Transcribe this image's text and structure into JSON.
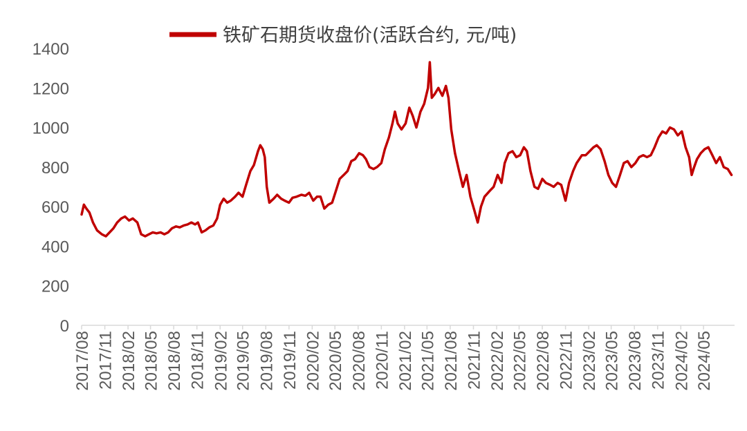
{
  "chart_data": {
    "type": "line",
    "title": "",
    "xlabel": "",
    "ylabel": "",
    "ylim": [
      0,
      1400
    ],
    "yticks": [
      0,
      200,
      400,
      600,
      800,
      1000,
      1200,
      1400
    ],
    "xlim": [
      "2017-08",
      "2024-09"
    ],
    "xticks": [
      "2017/08",
      "2017/11",
      "2018/02",
      "2018/05",
      "2018/08",
      "2018/11",
      "2019/02",
      "2019/05",
      "2019/08",
      "2019/11",
      "2020/02",
      "2020/05",
      "2020/08",
      "2020/11",
      "2021/02",
      "2021/05",
      "2021/08",
      "2021/11",
      "2022/02",
      "2022/05",
      "2022/08",
      "2022/11",
      "2023/02",
      "2023/05",
      "2023/08",
      "2023/11",
      "2024/02",
      "2024/05"
    ],
    "grid": false,
    "legend_position": "top",
    "series": [
      {
        "name": "铁矿石期货收盘价(活跃合约,  元/吨)",
        "color": "#C00000",
        "points": [
          [
            "2017-08-01",
            560
          ],
          [
            "2017-08-10",
            610
          ],
          [
            "2017-08-20",
            590
          ],
          [
            "2017-09-01",
            570
          ],
          [
            "2017-09-15",
            520
          ],
          [
            "2017-10-01",
            480
          ],
          [
            "2017-10-20",
            460
          ],
          [
            "2017-11-05",
            450
          ],
          [
            "2017-11-20",
            470
          ],
          [
            "2017-12-05",
            490
          ],
          [
            "2017-12-20",
            520
          ],
          [
            "2018-01-05",
            540
          ],
          [
            "2018-01-20",
            550
          ],
          [
            "2018-02-05",
            530
          ],
          [
            "2018-02-20",
            540
          ],
          [
            "2018-03-10",
            520
          ],
          [
            "2018-03-25",
            460
          ],
          [
            "2018-04-10",
            450
          ],
          [
            "2018-04-25",
            460
          ],
          [
            "2018-05-10",
            470
          ],
          [
            "2018-05-25",
            465
          ],
          [
            "2018-06-10",
            470
          ],
          [
            "2018-06-25",
            460
          ],
          [
            "2018-07-10",
            470
          ],
          [
            "2018-07-25",
            490
          ],
          [
            "2018-08-10",
            500
          ],
          [
            "2018-08-25",
            495
          ],
          [
            "2018-09-10",
            505
          ],
          [
            "2018-09-25",
            510
          ],
          [
            "2018-10-10",
            520
          ],
          [
            "2018-10-25",
            510
          ],
          [
            "2018-11-05",
            520
          ],
          [
            "2018-11-20",
            470
          ],
          [
            "2018-12-05",
            480
          ],
          [
            "2018-12-20",
            495
          ],
          [
            "2019-01-05",
            505
          ],
          [
            "2019-01-20",
            540
          ],
          [
            "2019-02-01",
            610
          ],
          [
            "2019-02-15",
            640
          ],
          [
            "2019-03-01",
            620
          ],
          [
            "2019-03-15",
            630
          ],
          [
            "2019-04-01",
            650
          ],
          [
            "2019-04-15",
            670
          ],
          [
            "2019-05-01",
            650
          ],
          [
            "2019-05-15",
            710
          ],
          [
            "2019-06-01",
            780
          ],
          [
            "2019-06-15",
            810
          ],
          [
            "2019-07-01",
            880
          ],
          [
            "2019-07-10",
            910
          ],
          [
            "2019-07-20",
            890
          ],
          [
            "2019-07-28",
            850
          ],
          [
            "2019-08-05",
            700
          ],
          [
            "2019-08-15",
            620
          ],
          [
            "2019-09-01",
            640
          ],
          [
            "2019-09-15",
            660
          ],
          [
            "2019-10-01",
            640
          ],
          [
            "2019-10-15",
            630
          ],
          [
            "2019-11-01",
            620
          ],
          [
            "2019-11-15",
            645
          ],
          [
            "2019-12-01",
            650
          ],
          [
            "2019-12-20",
            660
          ],
          [
            "2020-01-05",
            655
          ],
          [
            "2020-01-20",
            670
          ],
          [
            "2020-02-05",
            630
          ],
          [
            "2020-02-20",
            650
          ],
          [
            "2020-03-05",
            650
          ],
          [
            "2020-03-20",
            590
          ],
          [
            "2020-04-05",
            610
          ],
          [
            "2020-04-20",
            620
          ],
          [
            "2020-05-05",
            680
          ],
          [
            "2020-05-20",
            740
          ],
          [
            "2020-06-05",
            760
          ],
          [
            "2020-06-20",
            780
          ],
          [
            "2020-07-05",
            830
          ],
          [
            "2020-07-20",
            840
          ],
          [
            "2020-08-05",
            870
          ],
          [
            "2020-08-20",
            860
          ],
          [
            "2020-09-01",
            840
          ],
          [
            "2020-09-15",
            800
          ],
          [
            "2020-10-01",
            790
          ],
          [
            "2020-10-15",
            800
          ],
          [
            "2020-11-01",
            820
          ],
          [
            "2020-11-15",
            890
          ],
          [
            "2020-12-01",
            950
          ],
          [
            "2020-12-15",
            1020
          ],
          [
            "2020-12-25",
            1080
          ],
          [
            "2021-01-05",
            1020
          ],
          [
            "2021-01-20",
            990
          ],
          [
            "2021-02-05",
            1020
          ],
          [
            "2021-02-20",
            1100
          ],
          [
            "2021-03-05",
            1060
          ],
          [
            "2021-03-20",
            1000
          ],
          [
            "2021-04-05",
            1080
          ],
          [
            "2021-04-20",
            1120
          ],
          [
            "2021-05-05",
            1200
          ],
          [
            "2021-05-12",
            1330
          ],
          [
            "2021-05-20",
            1150
          ],
          [
            "2021-06-01",
            1170
          ],
          [
            "2021-06-15",
            1200
          ],
          [
            "2021-07-01",
            1160
          ],
          [
            "2021-07-15",
            1210
          ],
          [
            "2021-07-25",
            1150
          ],
          [
            "2021-08-05",
            990
          ],
          [
            "2021-08-20",
            870
          ],
          [
            "2021-09-05",
            780
          ],
          [
            "2021-09-20",
            700
          ],
          [
            "2021-10-05",
            760
          ],
          [
            "2021-10-20",
            650
          ],
          [
            "2021-11-05",
            580
          ],
          [
            "2021-11-18",
            520
          ],
          [
            "2021-12-01",
            600
          ],
          [
            "2021-12-15",
            650
          ],
          [
            "2022-01-05",
            680
          ],
          [
            "2022-01-20",
            700
          ],
          [
            "2022-02-05",
            760
          ],
          [
            "2022-02-20",
            720
          ],
          [
            "2022-03-05",
            820
          ],
          [
            "2022-03-20",
            870
          ],
          [
            "2022-04-05",
            880
          ],
          [
            "2022-04-20",
            850
          ],
          [
            "2022-05-05",
            860
          ],
          [
            "2022-05-20",
            900
          ],
          [
            "2022-06-01",
            880
          ],
          [
            "2022-06-15",
            780
          ],
          [
            "2022-07-01",
            700
          ],
          [
            "2022-07-15",
            690
          ],
          [
            "2022-08-01",
            740
          ],
          [
            "2022-08-15",
            720
          ],
          [
            "2022-09-01",
            710
          ],
          [
            "2022-09-15",
            700
          ],
          [
            "2022-10-01",
            720
          ],
          [
            "2022-10-15",
            710
          ],
          [
            "2022-11-01",
            630
          ],
          [
            "2022-11-15",
            720
          ],
          [
            "2022-12-01",
            780
          ],
          [
            "2022-12-15",
            820
          ],
          [
            "2023-01-05",
            860
          ],
          [
            "2023-01-20",
            860
          ],
          [
            "2023-02-05",
            880
          ],
          [
            "2023-02-20",
            900
          ],
          [
            "2023-03-05",
            910
          ],
          [
            "2023-03-20",
            890
          ],
          [
            "2023-04-05",
            830
          ],
          [
            "2023-04-20",
            760
          ],
          [
            "2023-05-05",
            720
          ],
          [
            "2023-05-20",
            700
          ],
          [
            "2023-06-05",
            760
          ],
          [
            "2023-06-20",
            820
          ],
          [
            "2023-07-05",
            830
          ],
          [
            "2023-07-20",
            800
          ],
          [
            "2023-08-05",
            820
          ],
          [
            "2023-08-20",
            850
          ],
          [
            "2023-09-05",
            860
          ],
          [
            "2023-09-20",
            850
          ],
          [
            "2023-10-05",
            860
          ],
          [
            "2023-10-20",
            900
          ],
          [
            "2023-11-05",
            950
          ],
          [
            "2023-11-20",
            980
          ],
          [
            "2023-12-05",
            970
          ],
          [
            "2023-12-20",
            1000
          ],
          [
            "2024-01-05",
            990
          ],
          [
            "2024-01-20",
            960
          ],
          [
            "2024-02-05",
            980
          ],
          [
            "2024-02-20",
            900
          ],
          [
            "2024-03-05",
            850
          ],
          [
            "2024-03-15",
            760
          ],
          [
            "2024-03-25",
            800
          ],
          [
            "2024-04-05",
            840
          ],
          [
            "2024-04-20",
            870
          ],
          [
            "2024-05-05",
            890
          ],
          [
            "2024-05-20",
            900
          ],
          [
            "2024-06-05",
            860
          ],
          [
            "2024-06-20",
            820
          ],
          [
            "2024-07-05",
            850
          ],
          [
            "2024-07-20",
            800
          ],
          [
            "2024-08-05",
            790
          ],
          [
            "2024-08-20",
            760
          ]
        ]
      }
    ]
  }
}
